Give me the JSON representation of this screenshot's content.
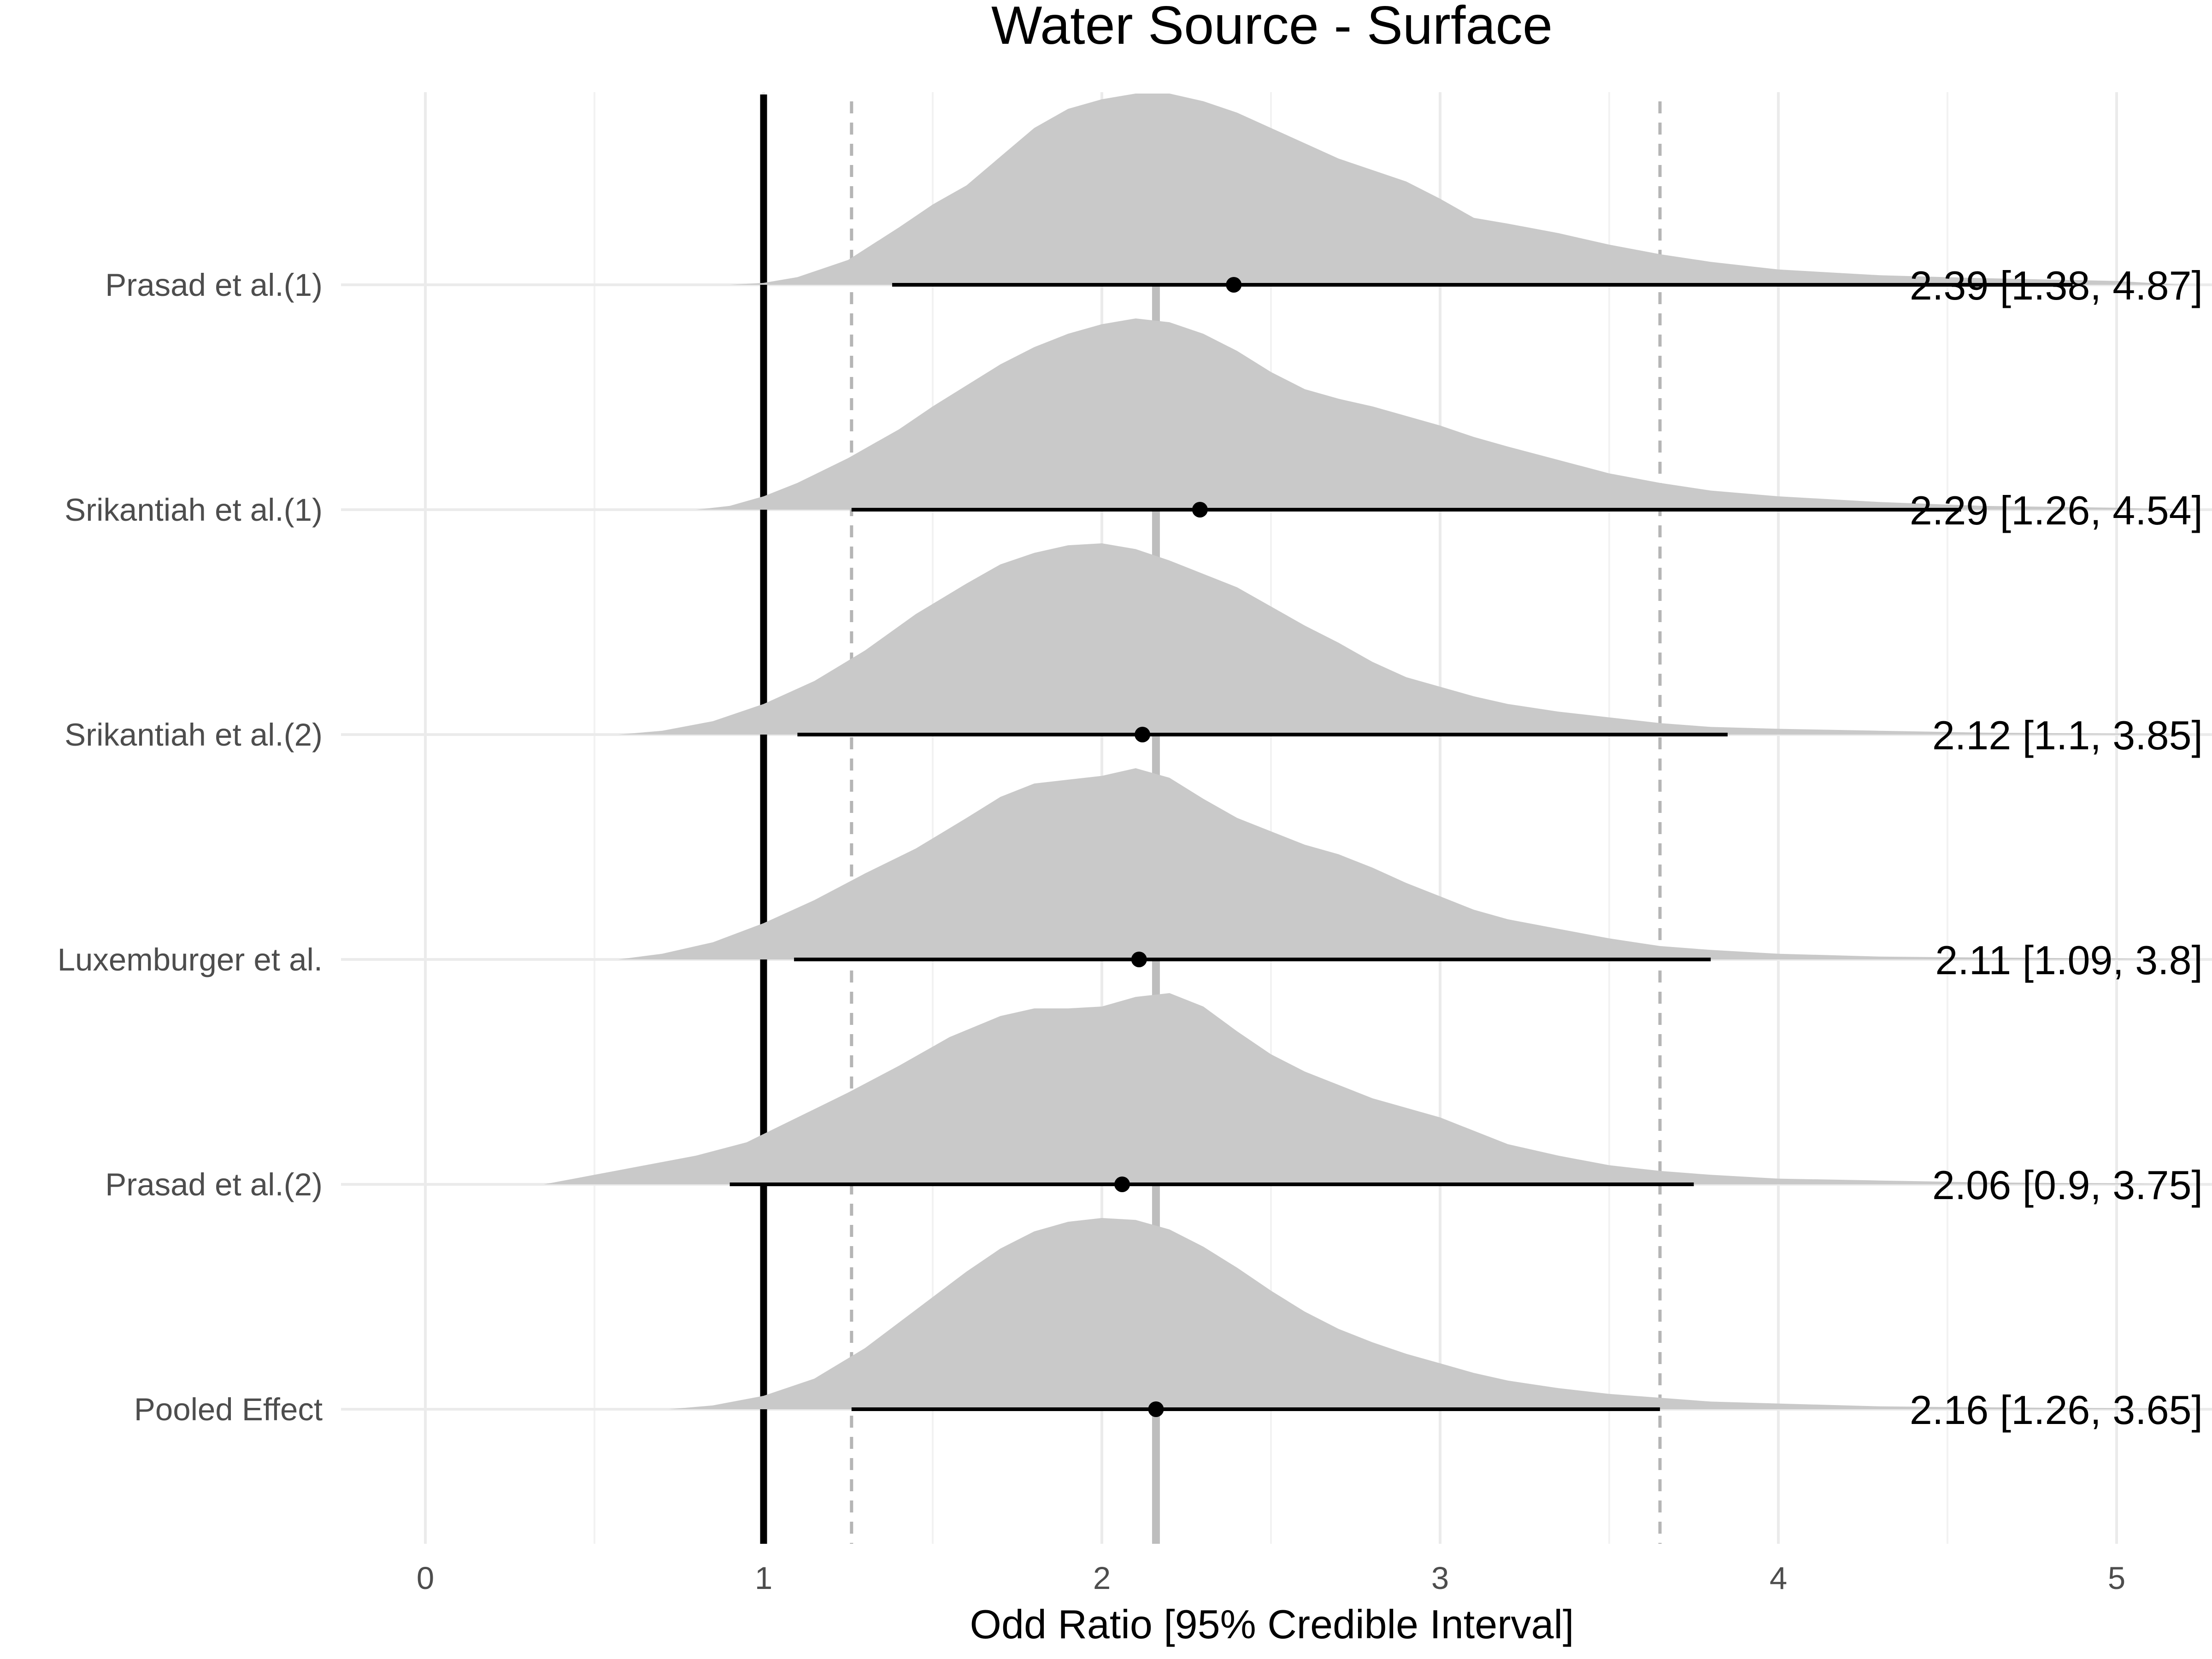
{
  "chart_data": {
    "type": "forest-density",
    "title": "Water Source - Surface",
    "xlabel": "Odd Ratio [95% Credible Interval]",
    "xlim": [
      0,
      5
    ],
    "x_ticks": [
      0,
      1,
      2,
      3,
      4,
      5
    ],
    "x_tick_labels": [
      "0",
      "1",
      "2",
      "3",
      "4",
      "5"
    ],
    "reference_line": 1,
    "pooled_estimate_line": 2.16,
    "pooled_interval_lines": [
      1.26,
      3.65
    ],
    "rows": [
      {
        "label": "Prasad et al.(1)",
        "estimate": 2.39,
        "lower": 1.38,
        "upper": 4.87,
        "annotation": "2.39 [1.38, 4.87]",
        "density": [
          [
            0.9,
            0.0
          ],
          [
            1.0,
            0.01
          ],
          [
            1.1,
            0.04
          ],
          [
            1.25,
            0.13
          ],
          [
            1.4,
            0.3
          ],
          [
            1.5,
            0.42
          ],
          [
            1.6,
            0.52
          ],
          [
            1.7,
            0.67
          ],
          [
            1.8,
            0.82
          ],
          [
            1.9,
            0.92
          ],
          [
            2.0,
            0.97
          ],
          [
            2.1,
            1.0
          ],
          [
            2.2,
            1.0
          ],
          [
            2.3,
            0.96
          ],
          [
            2.4,
            0.9
          ],
          [
            2.5,
            0.82
          ],
          [
            2.6,
            0.74
          ],
          [
            2.7,
            0.66
          ],
          [
            2.8,
            0.6
          ],
          [
            2.9,
            0.54
          ],
          [
            3.0,
            0.45
          ],
          [
            3.1,
            0.35
          ],
          [
            3.2,
            0.32
          ],
          [
            3.35,
            0.27
          ],
          [
            3.5,
            0.21
          ],
          [
            3.65,
            0.16
          ],
          [
            3.8,
            0.12
          ],
          [
            4.0,
            0.08
          ],
          [
            4.3,
            0.05
          ],
          [
            4.6,
            0.035
          ],
          [
            5.0,
            0.02
          ],
          [
            5.2,
            0.0
          ]
        ]
      },
      {
        "label": "Srikantiah et al.(1)",
        "estimate": 2.29,
        "lower": 1.26,
        "upper": 4.54,
        "annotation": "2.29 [1.26, 4.54]",
        "density": [
          [
            0.8,
            0.0
          ],
          [
            0.9,
            0.02
          ],
          [
            1.0,
            0.07
          ],
          [
            1.1,
            0.14
          ],
          [
            1.25,
            0.27
          ],
          [
            1.4,
            0.42
          ],
          [
            1.5,
            0.54
          ],
          [
            1.6,
            0.65
          ],
          [
            1.7,
            0.76
          ],
          [
            1.8,
            0.85
          ],
          [
            1.9,
            0.92
          ],
          [
            2.0,
            0.97
          ],
          [
            2.1,
            1.0
          ],
          [
            2.2,
            0.98
          ],
          [
            2.3,
            0.92
          ],
          [
            2.4,
            0.83
          ],
          [
            2.5,
            0.72
          ],
          [
            2.6,
            0.63
          ],
          [
            2.7,
            0.58
          ],
          [
            2.8,
            0.54
          ],
          [
            2.9,
            0.49
          ],
          [
            3.0,
            0.44
          ],
          [
            3.1,
            0.38
          ],
          [
            3.2,
            0.33
          ],
          [
            3.35,
            0.26
          ],
          [
            3.5,
            0.19
          ],
          [
            3.65,
            0.14
          ],
          [
            3.8,
            0.1
          ],
          [
            4.0,
            0.07
          ],
          [
            4.3,
            0.04
          ],
          [
            4.6,
            0.02
          ],
          [
            5.0,
            0.01
          ],
          [
            5.2,
            0.0
          ]
        ]
      },
      {
        "label": "Srikantiah et al.(2)",
        "estimate": 2.12,
        "lower": 1.1,
        "upper": 3.85,
        "annotation": "2.12 [1.1, 3.85]",
        "density": [
          [
            0.57,
            0.0
          ],
          [
            0.7,
            0.02
          ],
          [
            0.85,
            0.07
          ],
          [
            1.0,
            0.16
          ],
          [
            1.15,
            0.28
          ],
          [
            1.3,
            0.44
          ],
          [
            1.45,
            0.63
          ],
          [
            1.6,
            0.79
          ],
          [
            1.7,
            0.89
          ],
          [
            1.8,
            0.95
          ],
          [
            1.9,
            0.99
          ],
          [
            2.0,
            1.0
          ],
          [
            2.1,
            0.97
          ],
          [
            2.2,
            0.91
          ],
          [
            2.3,
            0.84
          ],
          [
            2.4,
            0.77
          ],
          [
            2.5,
            0.67
          ],
          [
            2.6,
            0.57
          ],
          [
            2.7,
            0.48
          ],
          [
            2.8,
            0.38
          ],
          [
            2.9,
            0.3
          ],
          [
            3.0,
            0.25
          ],
          [
            3.1,
            0.2
          ],
          [
            3.2,
            0.16
          ],
          [
            3.35,
            0.12
          ],
          [
            3.5,
            0.09
          ],
          [
            3.65,
            0.06
          ],
          [
            3.8,
            0.04
          ],
          [
            4.0,
            0.03
          ],
          [
            4.3,
            0.02
          ],
          [
            4.6,
            0.01
          ],
          [
            5.0,
            0.005
          ],
          [
            5.2,
            0.0
          ]
        ]
      },
      {
        "label": "Luxemburger et al.",
        "estimate": 2.11,
        "lower": 1.09,
        "upper": 3.8,
        "annotation": "2.11 [1.09, 3.8]",
        "density": [
          [
            0.57,
            0.0
          ],
          [
            0.7,
            0.03
          ],
          [
            0.85,
            0.09
          ],
          [
            1.0,
            0.19
          ],
          [
            1.15,
            0.31
          ],
          [
            1.3,
            0.45
          ],
          [
            1.45,
            0.58
          ],
          [
            1.6,
            0.74
          ],
          [
            1.7,
            0.85
          ],
          [
            1.8,
            0.92
          ],
          [
            1.9,
            0.94
          ],
          [
            2.0,
            0.96
          ],
          [
            2.1,
            1.0
          ],
          [
            2.2,
            0.95
          ],
          [
            2.3,
            0.84
          ],
          [
            2.4,
            0.74
          ],
          [
            2.5,
            0.67
          ],
          [
            2.6,
            0.6
          ],
          [
            2.7,
            0.55
          ],
          [
            2.8,
            0.48
          ],
          [
            2.9,
            0.4
          ],
          [
            3.0,
            0.33
          ],
          [
            3.1,
            0.26
          ],
          [
            3.2,
            0.21
          ],
          [
            3.35,
            0.16
          ],
          [
            3.5,
            0.11
          ],
          [
            3.65,
            0.07
          ],
          [
            3.8,
            0.05
          ],
          [
            4.0,
            0.03
          ],
          [
            4.3,
            0.015
          ],
          [
            4.6,
            0.01
          ],
          [
            5.0,
            0.005
          ],
          [
            5.2,
            0.0
          ]
        ]
      },
      {
        "label": "Prasad et al.(2)",
        "estimate": 2.06,
        "lower": 0.9,
        "upper": 3.75,
        "annotation": "2.06 [0.9, 3.75]",
        "density": [
          [
            0.35,
            0.0
          ],
          [
            0.5,
            0.05
          ],
          [
            0.65,
            0.1
          ],
          [
            0.8,
            0.15
          ],
          [
            0.95,
            0.22
          ],
          [
            1.1,
            0.35
          ],
          [
            1.25,
            0.48
          ],
          [
            1.4,
            0.62
          ],
          [
            1.55,
            0.77
          ],
          [
            1.7,
            0.88
          ],
          [
            1.8,
            0.92
          ],
          [
            1.9,
            0.92
          ],
          [
            2.0,
            0.93
          ],
          [
            2.1,
            0.98
          ],
          [
            2.2,
            1.0
          ],
          [
            2.3,
            0.93
          ],
          [
            2.4,
            0.8
          ],
          [
            2.5,
            0.68
          ],
          [
            2.6,
            0.59
          ],
          [
            2.7,
            0.52
          ],
          [
            2.8,
            0.45
          ],
          [
            2.9,
            0.4
          ],
          [
            3.0,
            0.35
          ],
          [
            3.1,
            0.28
          ],
          [
            3.2,
            0.21
          ],
          [
            3.35,
            0.15
          ],
          [
            3.5,
            0.1
          ],
          [
            3.65,
            0.07
          ],
          [
            3.8,
            0.05
          ],
          [
            4.0,
            0.03
          ],
          [
            4.3,
            0.02
          ],
          [
            4.6,
            0.01
          ],
          [
            5.0,
            0.005
          ],
          [
            5.2,
            0.0
          ]
        ]
      },
      {
        "label": "Pooled Effect",
        "estimate": 2.16,
        "lower": 1.26,
        "upper": 3.65,
        "annotation": "2.16 [1.26, 3.65]",
        "density": [
          [
            0.72,
            0.0
          ],
          [
            0.85,
            0.02
          ],
          [
            1.0,
            0.07
          ],
          [
            1.15,
            0.16
          ],
          [
            1.3,
            0.32
          ],
          [
            1.45,
            0.52
          ],
          [
            1.6,
            0.72
          ],
          [
            1.7,
            0.84
          ],
          [
            1.8,
            0.93
          ],
          [
            1.9,
            0.98
          ],
          [
            2.0,
            1.0
          ],
          [
            2.1,
            0.99
          ],
          [
            2.2,
            0.94
          ],
          [
            2.3,
            0.85
          ],
          [
            2.4,
            0.74
          ],
          [
            2.5,
            0.62
          ],
          [
            2.6,
            0.51
          ],
          [
            2.7,
            0.42
          ],
          [
            2.8,
            0.35
          ],
          [
            2.9,
            0.29
          ],
          [
            3.0,
            0.24
          ],
          [
            3.1,
            0.19
          ],
          [
            3.2,
            0.15
          ],
          [
            3.35,
            0.11
          ],
          [
            3.5,
            0.08
          ],
          [
            3.65,
            0.06
          ],
          [
            3.8,
            0.04
          ],
          [
            4.0,
            0.03
          ],
          [
            4.3,
            0.015
          ],
          [
            4.6,
            0.01
          ],
          [
            5.0,
            0.005
          ],
          [
            5.2,
            0.0
          ]
        ]
      }
    ]
  }
}
